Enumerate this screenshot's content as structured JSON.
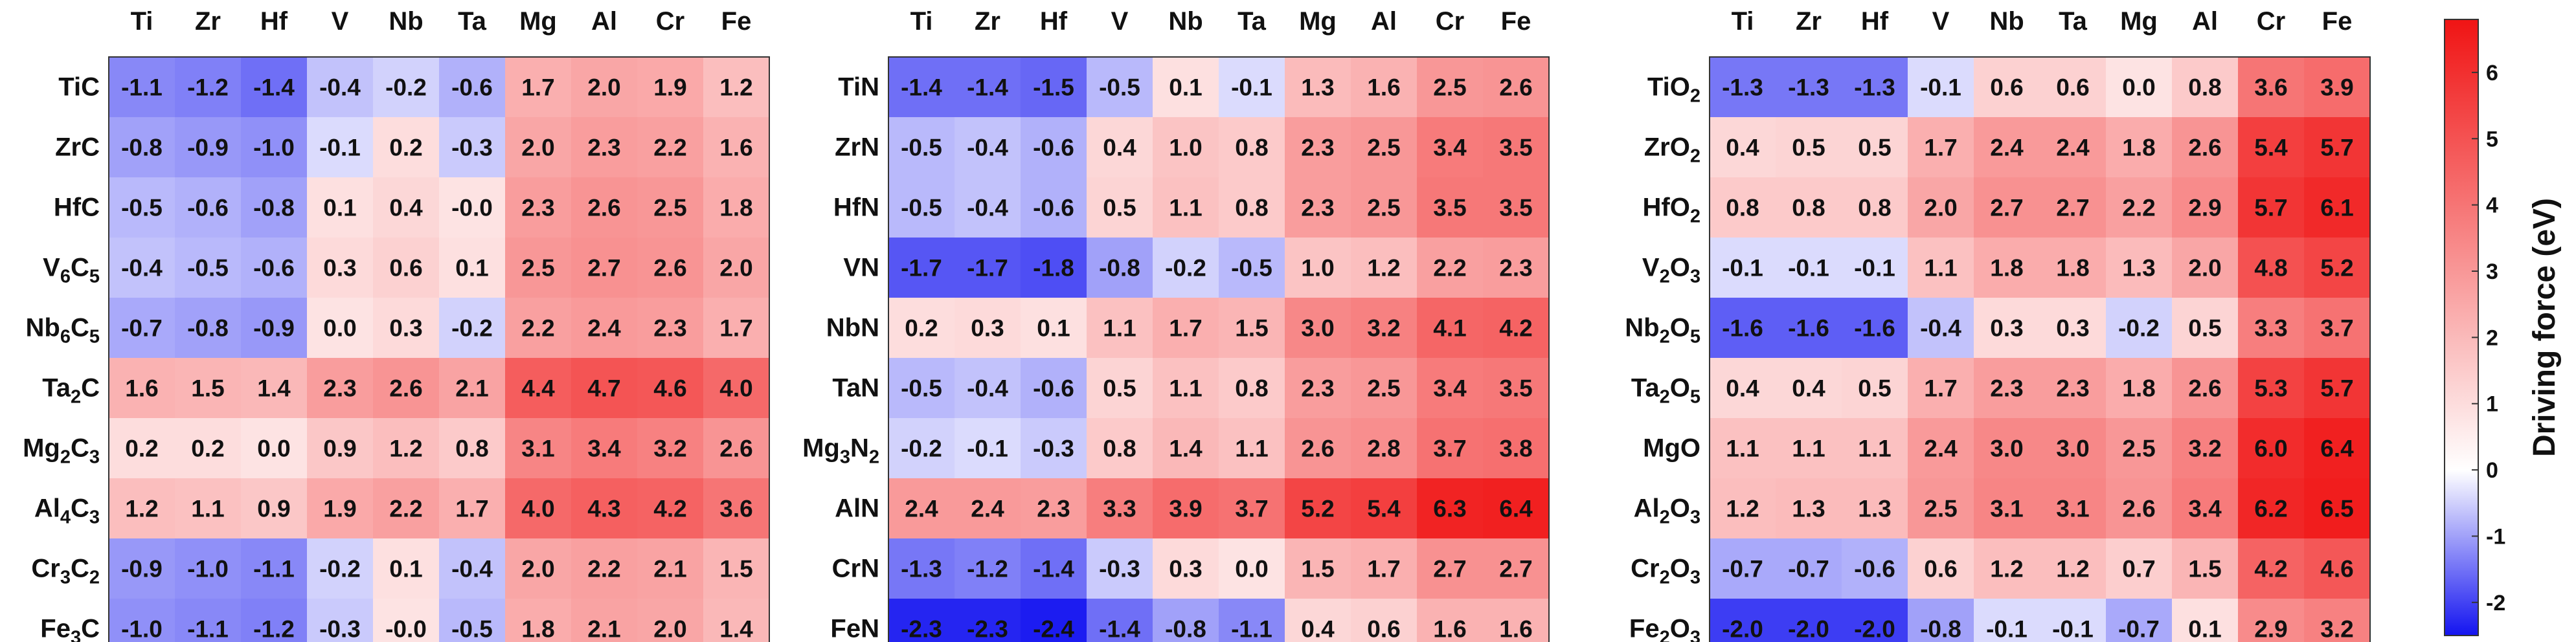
{
  "colors": {
    "negative_max": "#1414f0",
    "zero": "#ffffff",
    "positive_max": "#f01414"
  },
  "chart_data": [
    {
      "type": "heatmap",
      "title": "",
      "columns": [
        "Ti",
        "Zr",
        "Hf",
        "V",
        "Nb",
        "Ta",
        "Mg",
        "Al",
        "Cr",
        "Fe"
      ],
      "rows": [
        {
          "label": "TiC",
          "parts": [
            {
              "t": "TiC"
            }
          ]
        },
        {
          "label": "ZrC",
          "parts": [
            {
              "t": "ZrC"
            }
          ]
        },
        {
          "label": "HfC",
          "parts": [
            {
              "t": "HfC"
            }
          ]
        },
        {
          "label": "V6C5",
          "parts": [
            {
              "t": "V"
            },
            {
              "t": "6",
              "sub": true
            },
            {
              "t": "C"
            },
            {
              "t": "5",
              "sub": true
            }
          ]
        },
        {
          "label": "Nb6C5",
          "parts": [
            {
              "t": "Nb"
            },
            {
              "t": "6",
              "sub": true
            },
            {
              "t": "C"
            },
            {
              "t": "5",
              "sub": true
            }
          ]
        },
        {
          "label": "Ta2C",
          "parts": [
            {
              "t": "Ta"
            },
            {
              "t": "2",
              "sub": true
            },
            {
              "t": "C"
            }
          ]
        },
        {
          "label": "Mg2C3",
          "parts": [
            {
              "t": "Mg"
            },
            {
              "t": "2",
              "sub": true
            },
            {
              "t": "C"
            },
            {
              "t": "3",
              "sub": true
            }
          ]
        },
        {
          "label": "Al4C3",
          "parts": [
            {
              "t": "Al"
            },
            {
              "t": "4",
              "sub": true
            },
            {
              "t": "C"
            },
            {
              "t": "3",
              "sub": true
            }
          ]
        },
        {
          "label": "Cr3C2",
          "parts": [
            {
              "t": "Cr"
            },
            {
              "t": "3",
              "sub": true
            },
            {
              "t": "C"
            },
            {
              "t": "2",
              "sub": true
            }
          ]
        },
        {
          "label": "Fe3C",
          "parts": [
            {
              "t": "Fe"
            },
            {
              "t": "3",
              "sub": true
            },
            {
              "t": "C"
            }
          ]
        }
      ],
      "values": [
        [
          "-1.1",
          "-1.2",
          "-1.4",
          "-0.4",
          "-0.2",
          "-0.6",
          "1.7",
          "2.0",
          "1.9",
          "1.2"
        ],
        [
          "-0.8",
          "-0.9",
          "-1.0",
          "-0.1",
          "0.2",
          "-0.3",
          "2.0",
          "2.3",
          "2.2",
          "1.6"
        ],
        [
          "-0.5",
          "-0.6",
          "-0.8",
          "0.1",
          "0.4",
          "-0.0",
          "2.3",
          "2.6",
          "2.5",
          "1.8"
        ],
        [
          "-0.4",
          "-0.5",
          "-0.6",
          "0.3",
          "0.6",
          "0.1",
          "2.5",
          "2.7",
          "2.6",
          "2.0"
        ],
        [
          "-0.7",
          "-0.8",
          "-0.9",
          "0.0",
          "0.3",
          "-0.2",
          "2.2",
          "2.4",
          "2.3",
          "1.7"
        ],
        [
          "1.6",
          "1.5",
          "1.4",
          "2.3",
          "2.6",
          "2.1",
          "4.4",
          "4.7",
          "4.6",
          "4.0"
        ],
        [
          "0.2",
          "0.2",
          "0.0",
          "0.9",
          "1.2",
          "0.8",
          "3.1",
          "3.4",
          "3.2",
          "2.6"
        ],
        [
          "1.2",
          "1.1",
          "0.9",
          "1.9",
          "2.2",
          "1.7",
          "4.0",
          "4.3",
          "4.2",
          "3.6"
        ],
        [
          "-0.9",
          "-1.0",
          "-1.1",
          "-0.2",
          "0.1",
          "-0.4",
          "2.0",
          "2.2",
          "2.1",
          "1.5"
        ],
        [
          "-1.0",
          "-1.1",
          "-1.2",
          "-0.3",
          "-0.0",
          "-0.5",
          "1.8",
          "2.1",
          "2.0",
          "1.4"
        ]
      ]
    },
    {
      "type": "heatmap",
      "title": "",
      "columns": [
        "Ti",
        "Zr",
        "Hf",
        "V",
        "Nb",
        "Ta",
        "Mg",
        "Al",
        "Cr",
        "Fe"
      ],
      "rows": [
        {
          "label": "TiN",
          "parts": [
            {
              "t": "TiN"
            }
          ]
        },
        {
          "label": "ZrN",
          "parts": [
            {
              "t": "ZrN"
            }
          ]
        },
        {
          "label": "HfN",
          "parts": [
            {
              "t": "HfN"
            }
          ]
        },
        {
          "label": "VN",
          "parts": [
            {
              "t": "VN"
            }
          ]
        },
        {
          "label": "NbN",
          "parts": [
            {
              "t": "NbN"
            }
          ]
        },
        {
          "label": "TaN",
          "parts": [
            {
              "t": "TaN"
            }
          ]
        },
        {
          "label": "Mg3N2",
          "parts": [
            {
              "t": "Mg"
            },
            {
              "t": "3",
              "sub": true
            },
            {
              "t": "N"
            },
            {
              "t": "2",
              "sub": true
            }
          ]
        },
        {
          "label": "AlN",
          "parts": [
            {
              "t": "AlN"
            }
          ]
        },
        {
          "label": "CrN",
          "parts": [
            {
              "t": "CrN"
            }
          ]
        },
        {
          "label": "FeN",
          "parts": [
            {
              "t": "FeN"
            }
          ]
        }
      ],
      "values": [
        [
          "-1.4",
          "-1.4",
          "-1.5",
          "-0.5",
          "0.1",
          "-0.1",
          "1.3",
          "1.6",
          "2.5",
          "2.6"
        ],
        [
          "-0.5",
          "-0.4",
          "-0.6",
          "0.4",
          "1.0",
          "0.8",
          "2.3",
          "2.5",
          "3.4",
          "3.5"
        ],
        [
          "-0.5",
          "-0.4",
          "-0.6",
          "0.5",
          "1.1",
          "0.8",
          "2.3",
          "2.5",
          "3.5",
          "3.5"
        ],
        [
          "-1.7",
          "-1.7",
          "-1.8",
          "-0.8",
          "-0.2",
          "-0.5",
          "1.0",
          "1.2",
          "2.2",
          "2.3"
        ],
        [
          "0.2",
          "0.3",
          "0.1",
          "1.1",
          "1.7",
          "1.5",
          "3.0",
          "3.2",
          "4.1",
          "4.2"
        ],
        [
          "-0.5",
          "-0.4",
          "-0.6",
          "0.5",
          "1.1",
          "0.8",
          "2.3",
          "2.5",
          "3.4",
          "3.5"
        ],
        [
          "-0.2",
          "-0.1",
          "-0.3",
          "0.8",
          "1.4",
          "1.1",
          "2.6",
          "2.8",
          "3.7",
          "3.8"
        ],
        [
          "2.4",
          "2.4",
          "2.3",
          "3.3",
          "3.9",
          "3.7",
          "5.2",
          "5.4",
          "6.3",
          "6.4"
        ],
        [
          "-1.3",
          "-1.2",
          "-1.4",
          "-0.3",
          "0.3",
          "0.0",
          "1.5",
          "1.7",
          "2.7",
          "2.7"
        ],
        [
          "-2.3",
          "-2.3",
          "-2.4",
          "-1.4",
          "-0.8",
          "-1.1",
          "0.4",
          "0.6",
          "1.6",
          "1.6"
        ]
      ]
    },
    {
      "type": "heatmap",
      "title": "",
      "columns": [
        "Ti",
        "Zr",
        "Hf",
        "V",
        "Nb",
        "Ta",
        "Mg",
        "Al",
        "Cr",
        "Fe"
      ],
      "rows": [
        {
          "label": "TiO2",
          "parts": [
            {
              "t": "TiO"
            },
            {
              "t": "2",
              "sub": true
            }
          ]
        },
        {
          "label": "ZrO2",
          "parts": [
            {
              "t": "ZrO"
            },
            {
              "t": "2",
              "sub": true
            }
          ]
        },
        {
          "label": "HfO2",
          "parts": [
            {
              "t": "HfO"
            },
            {
              "t": "2",
              "sub": true
            }
          ]
        },
        {
          "label": "V2O3",
          "parts": [
            {
              "t": "V"
            },
            {
              "t": "2",
              "sub": true
            },
            {
              "t": "O"
            },
            {
              "t": "3",
              "sub": true
            }
          ]
        },
        {
          "label": "Nb2O5",
          "parts": [
            {
              "t": "Nb"
            },
            {
              "t": "2",
              "sub": true
            },
            {
              "t": "O"
            },
            {
              "t": "5",
              "sub": true
            }
          ]
        },
        {
          "label": "Ta2O5",
          "parts": [
            {
              "t": "Ta"
            },
            {
              "t": "2",
              "sub": true
            },
            {
              "t": "O"
            },
            {
              "t": "5",
              "sub": true
            }
          ]
        },
        {
          "label": "MgO",
          "parts": [
            {
              "t": "MgO"
            }
          ]
        },
        {
          "label": "Al2O3",
          "parts": [
            {
              "t": "Al"
            },
            {
              "t": "2",
              "sub": true
            },
            {
              "t": "O"
            },
            {
              "t": "3",
              "sub": true
            }
          ]
        },
        {
          "label": "Cr2O3",
          "parts": [
            {
              "t": "Cr"
            },
            {
              "t": "2",
              "sub": true
            },
            {
              "t": "O"
            },
            {
              "t": "3",
              "sub": true
            }
          ]
        },
        {
          "label": "Fe2O3",
          "parts": [
            {
              "t": "Fe"
            },
            {
              "t": "2",
              "sub": true
            },
            {
              "t": "O"
            },
            {
              "t": "3",
              "sub": true
            }
          ]
        }
      ],
      "values": [
        [
          "-1.3",
          "-1.3",
          "-1.3",
          "-0.1",
          "0.6",
          "0.6",
          "0.0",
          "0.8",
          "3.6",
          "3.9"
        ],
        [
          "0.4",
          "0.5",
          "0.5",
          "1.7",
          "2.4",
          "2.4",
          "1.8",
          "2.6",
          "5.4",
          "5.7"
        ],
        [
          "0.8",
          "0.8",
          "0.8",
          "2.0",
          "2.7",
          "2.7",
          "2.2",
          "2.9",
          "5.7",
          "6.1"
        ],
        [
          "-0.1",
          "-0.1",
          "-0.1",
          "1.1",
          "1.8",
          "1.8",
          "1.3",
          "2.0",
          "4.8",
          "5.2"
        ],
        [
          "-1.6",
          "-1.6",
          "-1.6",
          "-0.4",
          "0.3",
          "0.3",
          "-0.2",
          "0.5",
          "3.3",
          "3.7"
        ],
        [
          "0.4",
          "0.4",
          "0.5",
          "1.7",
          "2.3",
          "2.3",
          "1.8",
          "2.6",
          "5.3",
          "5.7"
        ],
        [
          "1.1",
          "1.1",
          "1.1",
          "2.4",
          "3.0",
          "3.0",
          "2.5",
          "3.2",
          "6.0",
          "6.4"
        ],
        [
          "1.2",
          "1.3",
          "1.3",
          "2.5",
          "3.1",
          "3.1",
          "2.6",
          "3.4",
          "6.2",
          "6.5"
        ],
        [
          "-0.7",
          "-0.7",
          "-0.6",
          "0.6",
          "1.2",
          "1.2",
          "0.7",
          "1.5",
          "4.2",
          "4.6"
        ],
        [
          "-2.0",
          "-2.0",
          "-2.0",
          "-0.8",
          "-0.1",
          "-0.1",
          "-0.7",
          "0.1",
          "2.9",
          "3.2"
        ]
      ]
    }
  ],
  "colorbar": {
    "label": "Driving force (eV)",
    "range": [
      -2.5,
      6.8
    ],
    "ticks": [
      "-2",
      "-1",
      "0",
      "1",
      "2",
      "3",
      "4",
      "5",
      "6"
    ],
    "tick_values": [
      -2,
      -1,
      0,
      1,
      2,
      3,
      4,
      5,
      6
    ]
  }
}
